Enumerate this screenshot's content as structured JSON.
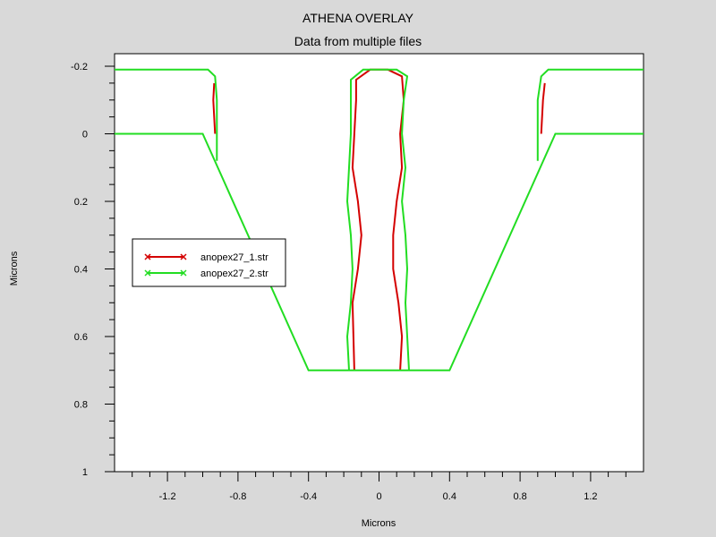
{
  "chart_data": {
    "type": "line",
    "title": "ATHENA OVERLAY",
    "subtitle": "Data from multiple files",
    "xlabel": "Microns",
    "ylabel": "Microns",
    "xlim": [
      -1.5,
      1.5
    ],
    "ylim": [
      -0.2,
      1.0
    ],
    "y_inverted": true,
    "x_ticks": [
      "-1.2",
      "-0.8",
      "-0.4",
      "0",
      "0.4",
      "0.8",
      "1.2"
    ],
    "y_ticks": [
      "-0.2",
      "0",
      "0.2",
      "0.4",
      "0.6",
      "0.8",
      "1"
    ],
    "legend_position": "left-middle",
    "series": [
      {
        "name": "anopex27_1.str",
        "color": "#d40000",
        "segments": [
          [
            [
              -0.93,
              0.0
            ],
            [
              -0.935,
              -0.05
            ],
            [
              -0.94,
              -0.1
            ],
            [
              -0.935,
              -0.15
            ]
          ],
          [
            [
              -0.14,
              0.7
            ],
            [
              -0.145,
              0.6
            ],
            [
              -0.15,
              0.5
            ],
            [
              -0.12,
              0.4
            ],
            [
              -0.1,
              0.3
            ],
            [
              -0.12,
              0.2
            ],
            [
              -0.15,
              0.1
            ],
            [
              -0.14,
              0.0
            ],
            [
              -0.13,
              -0.1
            ],
            [
              -0.13,
              -0.16
            ],
            [
              -0.05,
              -0.19
            ],
            [
              0.05,
              -0.19
            ],
            [
              0.13,
              -0.17
            ],
            [
              0.14,
              -0.1
            ],
            [
              0.12,
              0.0
            ],
            [
              0.13,
              0.1
            ],
            [
              0.1,
              0.2
            ],
            [
              0.08,
              0.3
            ],
            [
              0.08,
              0.4
            ],
            [
              0.11,
              0.5
            ],
            [
              0.13,
              0.6
            ],
            [
              0.12,
              0.7
            ]
          ],
          [
            [
              0.92,
              0.0
            ],
            [
              0.925,
              -0.05
            ],
            [
              0.93,
              -0.1
            ],
            [
              0.94,
              -0.15
            ]
          ]
        ]
      },
      {
        "name": "anopex27_2.str",
        "color": "#22dd22",
        "segments": [
          [
            [
              -1.5,
              -0.19
            ],
            [
              -0.97,
              -0.19
            ],
            [
              -0.93,
              -0.17
            ],
            [
              -0.92,
              -0.1
            ],
            [
              -0.92,
              0.08
            ]
          ],
          [
            [
              -1.5,
              0.0
            ],
            [
              -1.0,
              0.0
            ],
            [
              -0.4,
              0.7
            ],
            [
              0.4,
              0.7
            ],
            [
              1.0,
              0.0
            ],
            [
              1.5,
              0.0
            ]
          ],
          [
            [
              -0.17,
              0.7
            ],
            [
              -0.18,
              0.6
            ],
            [
              -0.16,
              0.5
            ],
            [
              -0.15,
              0.4
            ],
            [
              -0.16,
              0.3
            ],
            [
              -0.18,
              0.2
            ],
            [
              -0.17,
              0.1
            ],
            [
              -0.16,
              0.0
            ],
            [
              -0.16,
              -0.1
            ],
            [
              -0.16,
              -0.16
            ],
            [
              -0.09,
              -0.19
            ],
            [
              0.1,
              -0.19
            ],
            [
              0.16,
              -0.17
            ],
            [
              0.14,
              -0.1
            ],
            [
              0.13,
              0.0
            ],
            [
              0.15,
              0.1
            ],
            [
              0.13,
              0.2
            ],
            [
              0.15,
              0.3
            ],
            [
              0.16,
              0.4
            ],
            [
              0.15,
              0.5
            ],
            [
              0.16,
              0.6
            ],
            [
              0.17,
              0.7
            ]
          ],
          [
            [
              0.9,
              0.08
            ],
            [
              0.9,
              -0.1
            ],
            [
              0.92,
              -0.17
            ],
            [
              0.96,
              -0.19
            ],
            [
              1.5,
              -0.19
            ]
          ]
        ]
      }
    ]
  }
}
